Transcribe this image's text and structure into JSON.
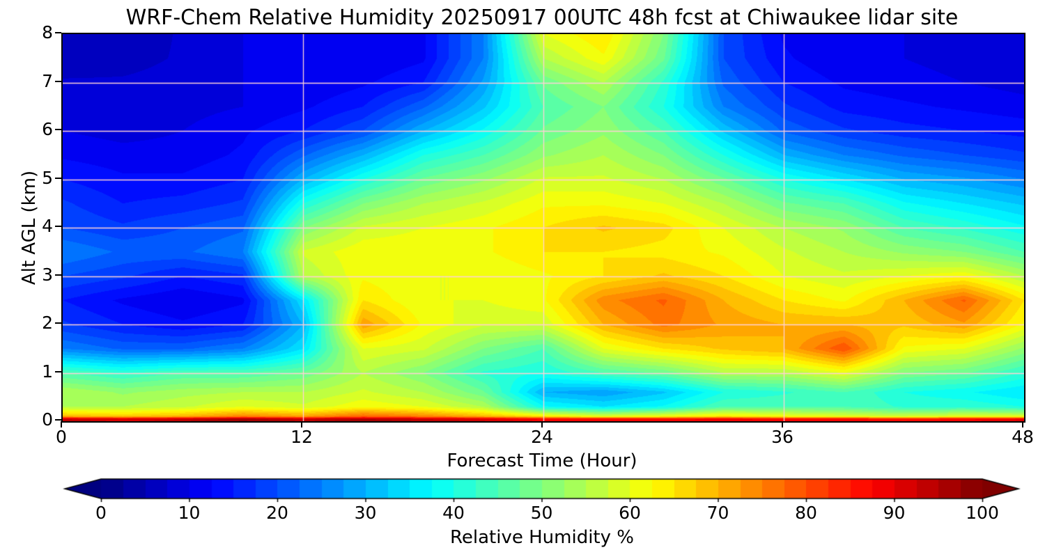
{
  "chart_data": {
    "type": "heatmap",
    "title": "WRF-Chem Relative Humidity 20250917 00UTC 48h fcst at Chiwaukee lidar site",
    "xlabel": "Forecast Time (Hour)",
    "ylabel": "Alt AGL (km)",
    "colorbar_label": "Relative Humidity %",
    "colormap": "jet",
    "grid_on": true,
    "grid_color": "#ffd2d7",
    "axis_color": "#000000",
    "xlim": [
      0,
      48
    ],
    "ylim": [
      0,
      8
    ],
    "clim": [
      0,
      100
    ],
    "x_ticks": [
      0,
      12,
      24,
      36,
      48
    ],
    "y_ticks": [
      0,
      1,
      2,
      3,
      4,
      5,
      6,
      7,
      8
    ],
    "colorbar_ticks": [
      0,
      10,
      20,
      30,
      40,
      50,
      60,
      70,
      80,
      90,
      100
    ],
    "x_hours": [
      0,
      3,
      6,
      9,
      12,
      15,
      18,
      21,
      24,
      27,
      30,
      33,
      36,
      39,
      42,
      45,
      48
    ],
    "alt_km": [
      0,
      0.05,
      0.1,
      0.3,
      0.6,
      1.0,
      1.5,
      2.0,
      2.5,
      3.0,
      3.5,
      4.0,
      4.5,
      5.0,
      5.5,
      6.0,
      6.5,
      7.0,
      7.5,
      8.0
    ],
    "values": [
      [
        95,
        92,
        95,
        98,
        95,
        97,
        95,
        93,
        90,
        90,
        90,
        90,
        90,
        90,
        88,
        90,
        92
      ],
      [
        92,
        90,
        92,
        96,
        92,
        95,
        92,
        90,
        86,
        86,
        86,
        87,
        86,
        86,
        84,
        86,
        88
      ],
      [
        70,
        68,
        70,
        75,
        72,
        78,
        75,
        70,
        65,
        60,
        62,
        65,
        62,
        60,
        58,
        60,
        60
      ],
      [
        55,
        55,
        57,
        60,
        58,
        62,
        60,
        55,
        38,
        35,
        38,
        45,
        45,
        45,
        42,
        42,
        40
      ],
      [
        55,
        52,
        54,
        55,
        55,
        58,
        55,
        48,
        30,
        28,
        32,
        40,
        42,
        45,
        40,
        38,
        35
      ],
      [
        45,
        42,
        45,
        45,
        48,
        55,
        50,
        42,
        40,
        45,
        48,
        55,
        55,
        60,
        50,
        48,
        42
      ],
      [
        25,
        22,
        22,
        25,
        35,
        60,
        58,
        50,
        45,
        60,
        65,
        68,
        70,
        80,
        62,
        60,
        52
      ],
      [
        18,
        15,
        13,
        15,
        30,
        72,
        62,
        58,
        58,
        70,
        76,
        72,
        70,
        70,
        68,
        72,
        62
      ],
      [
        15,
        12,
        10,
        12,
        35,
        65,
        60,
        60,
        62,
        74,
        78,
        70,
        65,
        62,
        70,
        78,
        65
      ],
      [
        20,
        18,
        15,
        17,
        55,
        62,
        60,
        60,
        62,
        65,
        68,
        65,
        60,
        58,
        60,
        62,
        55
      ],
      [
        25,
        22,
        22,
        25,
        58,
        62,
        62,
        62,
        65,
        65,
        64,
        62,
        58,
        55,
        52,
        50,
        45
      ],
      [
        20,
        18,
        20,
        22,
        50,
        58,
        60,
        62,
        65,
        68,
        66,
        60,
        55,
        52,
        45,
        42,
        38
      ],
      [
        18,
        15,
        16,
        18,
        40,
        50,
        55,
        58,
        62,
        62,
        60,
        55,
        48,
        45,
        38,
        35,
        32
      ],
      [
        15,
        13,
        13,
        15,
        30,
        40,
        48,
        52,
        58,
        58,
        55,
        48,
        40,
        35,
        30,
        28,
        25
      ],
      [
        12,
        11,
        11,
        13,
        22,
        30,
        40,
        45,
        52,
        55,
        50,
        40,
        30,
        25,
        22,
        20,
        18
      ],
      [
        10,
        9,
        10,
        12,
        15,
        20,
        30,
        38,
        48,
        52,
        45,
        32,
        22,
        18,
        16,
        15,
        14
      ],
      [
        8,
        8,
        9,
        10,
        12,
        15,
        22,
        32,
        45,
        50,
        40,
        25,
        18,
        14,
        13,
        12,
        11
      ],
      [
        8,
        8,
        9,
        10,
        10,
        12,
        15,
        28,
        48,
        55,
        42,
        22,
        15,
        12,
        11,
        10,
        9
      ],
      [
        5,
        6,
        8,
        10,
        10,
        10,
        12,
        25,
        55,
        62,
        48,
        20,
        13,
        10,
        10,
        9,
        8
      ],
      [
        5,
        5,
        8,
        10,
        10,
        10,
        12,
        25,
        60,
        65,
        50,
        20,
        12,
        10,
        10,
        9,
        8
      ]
    ]
  }
}
